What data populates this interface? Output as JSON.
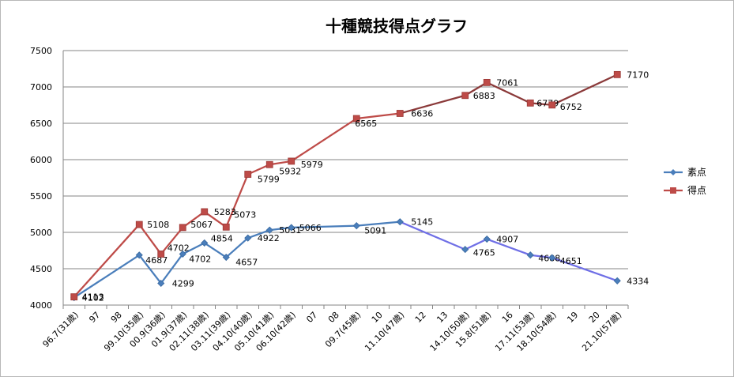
{
  "chart_data": {
    "type": "line",
    "title": "十種競技得点グラフ",
    "xlabel": "",
    "ylabel": "",
    "ylim": [
      4000,
      7500
    ],
    "yticks": [
      4000,
      4500,
      5000,
      5500,
      6000,
      6500,
      7000,
      7500
    ],
    "grid": "horizontal",
    "legend_position": "right",
    "categories": [
      "96.7(31歳)",
      "97",
      "98",
      "99.10(35歳)",
      "00.9(36歳)",
      "01.9(37歳)",
      "02.11(38歳)",
      "03.11(39歳)",
      "04.10(40歳)",
      "05.10(41歳)",
      "06.10(42歳)",
      "07",
      "08",
      "09.7(45歳)",
      "10",
      "11.10(47歳)",
      "12",
      "13",
      "14.10(50歳)",
      "15.8(51歳)",
      "16",
      "17.11(53歳)",
      "18.10(54歳)",
      "19",
      "20",
      "21.10(57歳)"
    ],
    "series": [
      {
        "name": "素点",
        "color": "#4a7ebb",
        "color2": "#6f6fe6",
        "marker": "diamond",
        "values": [
          4102,
          null,
          null,
          4687,
          4299,
          4702,
          4854,
          4657,
          4922,
          5031,
          5066,
          null,
          null,
          5091,
          null,
          5145,
          null,
          null,
          4765,
          4907,
          null,
          4688,
          4651,
          null,
          null,
          4334
        ],
        "labels": [
          "4102",
          null,
          null,
          "4687",
          "4299",
          "4702",
          "4854",
          "4657",
          "4922",
          "5031",
          "5066",
          null,
          null,
          "5091",
          null,
          "5145",
          null,
          null,
          "4765",
          "4907",
          null,
          "4688",
          "4651",
          null,
          null,
          "4334"
        ]
      },
      {
        "name": "得点",
        "color": "#be4b48",
        "color2": "#8b3a3a",
        "marker": "square",
        "values": [
          4113,
          null,
          null,
          5108,
          4702,
          5067,
          5283,
          5073,
          5799,
          5932,
          5979,
          null,
          null,
          6565,
          null,
          6636,
          null,
          null,
          6883,
          7061,
          null,
          6779,
          6752,
          null,
          null,
          7170
        ],
        "labels": [
          "4113",
          null,
          null,
          "5108",
          "4702",
          "5067",
          "5283",
          "5073",
          "5799",
          "5932",
          "5979",
          null,
          null,
          "6565",
          null,
          "6636",
          null,
          null,
          "6883",
          "7061",
          null,
          "6779",
          "6752",
          null,
          null,
          "7170"
        ]
      }
    ]
  }
}
